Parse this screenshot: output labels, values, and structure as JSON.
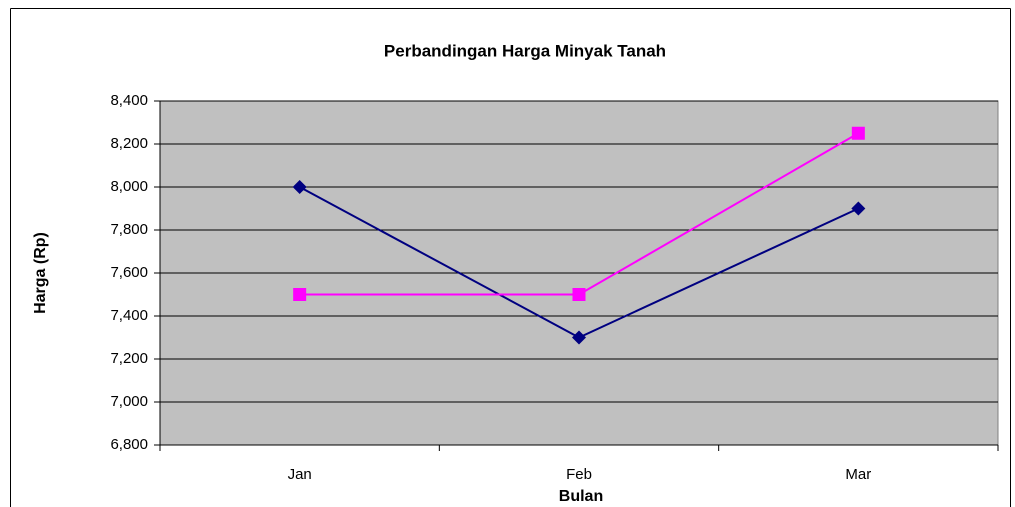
{
  "chart_data": {
    "type": "line",
    "title": "Perbandingan Harga Minyak Tanah",
    "x_label": "Bulan",
    "y_label": "Harga (Rp)",
    "categories": [
      "Jan",
      "Feb",
      "Mar"
    ],
    "series": [
      {
        "color": "#000080",
        "marker": "diamond",
        "values": [
          8000,
          7300,
          7900
        ]
      },
      {
        "color": "#ff00ff",
        "marker": "square",
        "values": [
          7500,
          7500,
          8250
        ]
      }
    ],
    "ylim": [
      6800,
      8400
    ],
    "yticks": [
      {
        "value": 6800,
        "label": "6,800"
      },
      {
        "value": 7000,
        "label": "7,000"
      },
      {
        "value": 7200,
        "label": "7,200"
      },
      {
        "value": 7400,
        "label": "7,400"
      },
      {
        "value": 7600,
        "label": "7,600"
      },
      {
        "value": 7800,
        "label": "7,800"
      },
      {
        "value": 8000,
        "label": "8,000"
      },
      {
        "value": 8200,
        "label": "8,200"
      },
      {
        "value": 8400,
        "label": "8,400"
      }
    ],
    "grid": true,
    "plot_background": "#c0c0c0"
  }
}
